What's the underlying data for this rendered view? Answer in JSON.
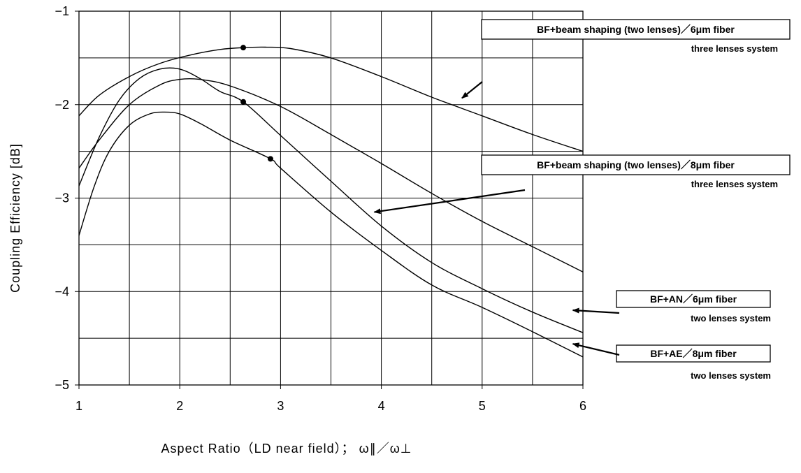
{
  "chart_data": {
    "type": "line",
    "xlabel": "Aspect Ratio（LD near field）；  ω∥／ω⊥",
    "ylabel": "Coupling Efficiency [dB]",
    "xlim": [
      1,
      6
    ],
    "ylim": [
      -5,
      -1
    ],
    "x_ticks": [
      "1",
      "2",
      "3",
      "4",
      "5",
      "6"
    ],
    "y_ticks": [
      "−5",
      "−4",
      "−3",
      "−2",
      "−1"
    ],
    "grid": true,
    "series": [
      {
        "name": "BF+beam shaping (two lenses)／6μm fiber",
        "label_line1": "BF+beam shaping (two lenses)／6μm  fiber",
        "label_line2": "three lenses system",
        "x": [
          1.0,
          1.2,
          1.5,
          1.8,
          2.1,
          2.4,
          2.63,
          2.85,
          3.1,
          3.5,
          4.0,
          4.5,
          5.0,
          5.5,
          6.0
        ],
        "y": [
          -2.12,
          -1.9,
          -1.7,
          -1.56,
          -1.47,
          -1.41,
          -1.39,
          -1.385,
          -1.4,
          -1.5,
          -1.7,
          -1.92,
          -2.12,
          -2.32,
          -2.5
        ],
        "marker_x": 2.63,
        "marker_y": -1.39
      },
      {
        "name": "BF+beam shaping (two lenses)／8μm fiber",
        "label_line1": "BF+beam shaping (two lenses)／8μm  fiber",
        "label_line2": "three lenses system",
        "x": [
          1.0,
          1.2,
          1.5,
          1.8,
          2.0,
          2.2,
          2.5,
          3.0,
          3.5,
          4.0,
          4.5,
          5.0,
          5.5,
          6.0
        ],
        "y": [
          -2.68,
          -2.38,
          -2.0,
          -1.79,
          -1.73,
          -1.73,
          -1.8,
          -2.02,
          -2.32,
          -2.63,
          -2.95,
          -3.25,
          -3.52,
          -3.79
        ]
      },
      {
        "name": "BF+AN／6μm fiber",
        "label_line1": "BF+AN／6μm fiber",
        "label_line2": "two lenses system",
        "x": [
          1.0,
          1.2,
          1.4,
          1.6,
          1.8,
          2.0,
          2.2,
          2.4,
          2.63,
          3.0,
          3.5,
          4.0,
          4.5,
          5.0,
          5.5,
          6.0
        ],
        "y": [
          -2.87,
          -2.35,
          -1.95,
          -1.72,
          -1.62,
          -1.62,
          -1.72,
          -1.86,
          -1.97,
          -2.33,
          -2.82,
          -3.3,
          -3.69,
          -3.97,
          -4.22,
          -4.44
        ],
        "marker_x": 2.63,
        "marker_y": -1.97
      },
      {
        "name": "BF+AE／8μm fiber",
        "label_line1": "BF+AE／8μm fiber",
        "label_line2": "two lenses system",
        "x": [
          1.0,
          1.15,
          1.3,
          1.5,
          1.7,
          1.85,
          2.0,
          2.2,
          2.5,
          2.9,
          3.0,
          3.5,
          4.0,
          4.5,
          5.0,
          5.5,
          6.0
        ],
        "y": [
          -3.4,
          -2.88,
          -2.5,
          -2.22,
          -2.1,
          -2.08,
          -2.1,
          -2.2,
          -2.38,
          -2.58,
          -2.68,
          -3.15,
          -3.56,
          -3.93,
          -4.17,
          -4.43,
          -4.7
        ],
        "marker_x": 2.9,
        "marker_y": -2.58
      }
    ],
    "annotations": [
      {
        "series": 0,
        "arrow_to": [
          4.8,
          -1.93
        ]
      },
      {
        "series": 1,
        "arrow_to": [
          3.93,
          -3.15
        ]
      },
      {
        "series": 2,
        "arrow_to": [
          5.9,
          -4.2
        ]
      },
      {
        "series": 3,
        "arrow_to": [
          5.9,
          -4.56
        ]
      }
    ]
  }
}
